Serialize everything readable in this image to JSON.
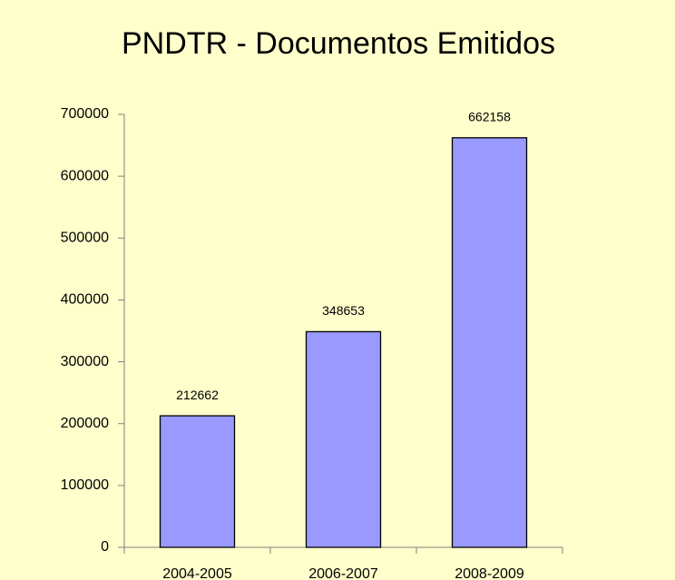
{
  "chart_data": {
    "type": "bar",
    "title": "PNDTR - Documentos Emitidos",
    "categories": [
      "2004-2005",
      "2006-2007",
      "2008-2009"
    ],
    "values": [
      212662,
      348653,
      662158
    ],
    "color": "#9999ff",
    "ylim": [
      0,
      700000
    ],
    "yticks": [
      0,
      100000,
      200000,
      300000,
      400000,
      500000,
      600000,
      700000
    ],
    "grid": false
  }
}
